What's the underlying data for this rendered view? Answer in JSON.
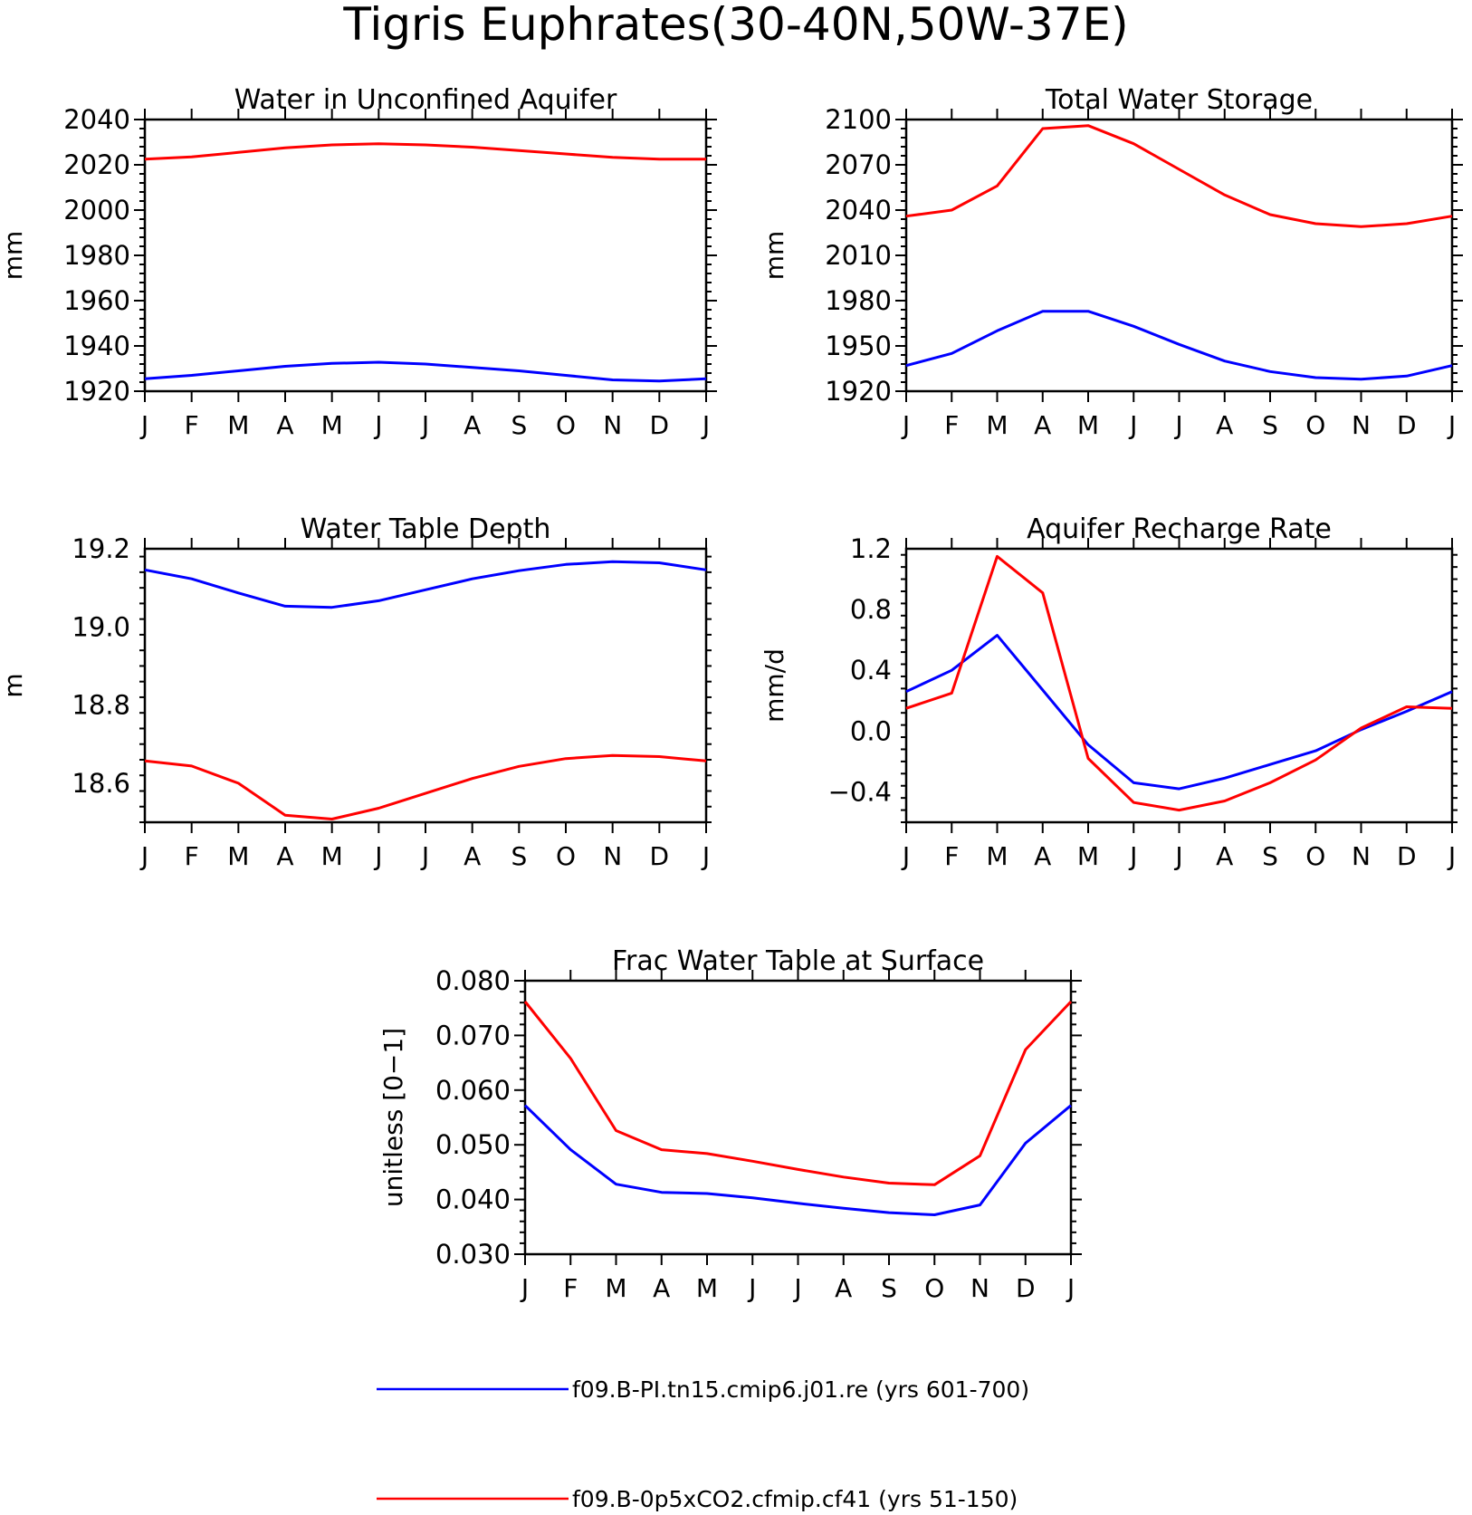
{
  "figure_title": "Tigris Euphrates(30-40N,50W-37E)",
  "colors": {
    "pi": "#0000ff",
    "co2": "#ff0000"
  },
  "months": [
    "J",
    "F",
    "M",
    "A",
    "M",
    "J",
    "J",
    "A",
    "S",
    "O",
    "N",
    "D",
    "J"
  ],
  "legend": [
    {
      "series": "pi",
      "label": "f09.B-PI.tn15.cmip6.j01.re (yrs 601-700)"
    },
    {
      "series": "co2",
      "label": "f09.B-0p5xCO2.cfmip.cf41 (yrs 51-150)"
    }
  ],
  "chart_data": [
    {
      "id": "aquifer",
      "type": "line",
      "title": "Water in Unconfined Aquifer",
      "ylabel": "mm",
      "ylim": [
        1920,
        2040
      ],
      "yticks": [
        "1920",
        "1940",
        "1960",
        "1980",
        "2000",
        "2020",
        "2040"
      ],
      "ytick_values": [
        1920,
        1940,
        1960,
        1980,
        2000,
        2020,
        2040
      ],
      "series": [
        {
          "key": "pi",
          "values": [
            1925.5,
            1927,
            1929,
            1931,
            1932.3,
            1932.8,
            1932,
            1930.5,
            1929,
            1927,
            1925,
            1924.5,
            1925.5
          ]
        },
        {
          "key": "co2",
          "values": [
            2022.5,
            2023.5,
            2025.5,
            2027.5,
            2028.8,
            2029.3,
            2028.8,
            2027.8,
            2026.3,
            2024.8,
            2023.3,
            2022.5,
            2022.5
          ]
        }
      ]
    },
    {
      "id": "tws",
      "type": "line",
      "title": "Total Water Storage",
      "ylabel": "mm",
      "ylim": [
        1920,
        2100
      ],
      "yticks": [
        "1920",
        "1950",
        "1980",
        "2010",
        "2040",
        "2070",
        "2100"
      ],
      "ytick_values": [
        1920,
        1950,
        1980,
        2010,
        2040,
        2070,
        2100
      ],
      "series": [
        {
          "key": "pi",
          "values": [
            1937,
            1945,
            1960,
            1973,
            1973,
            1963,
            1951,
            1940,
            1933,
            1929,
            1928,
            1930,
            1937
          ]
        },
        {
          "key": "co2",
          "values": [
            2036,
            2040,
            2056,
            2094,
            2096,
            2084,
            2067,
            2050,
            2037,
            2031,
            2029,
            2031,
            2036
          ]
        }
      ]
    },
    {
      "id": "wtd",
      "type": "line",
      "title": "Water Table Depth",
      "ylabel": "m",
      "ylim": [
        18.5,
        19.2
      ],
      "yticks": [
        "18.6",
        "18.8",
        "19.0",
        "19.2"
      ],
      "ytick_values": [
        18.6,
        18.8,
        19.0,
        19.2
      ],
      "series": [
        {
          "key": "pi",
          "values": [
            19.146,
            19.123,
            19.087,
            19.053,
            19.05,
            19.067,
            19.095,
            19.123,
            19.144,
            19.16,
            19.167,
            19.164,
            19.146
          ]
        },
        {
          "key": "co2",
          "values": [
            18.657,
            18.644,
            18.6,
            18.518,
            18.508,
            18.536,
            18.574,
            18.612,
            18.643,
            18.663,
            18.671,
            18.668,
            18.657
          ]
        }
      ]
    },
    {
      "id": "recharge",
      "type": "line",
      "title": "Aquifer Recharge Rate",
      "ylabel": "mm/d",
      "ylim": [
        -0.6,
        1.2
      ],
      "yticks": [
        "-0.4",
        "0.0",
        "0.4",
        "0.8",
        "1.2"
      ],
      "ytick_values": [
        -0.4,
        0.0,
        0.4,
        0.8,
        1.2
      ],
      "series": [
        {
          "key": "pi",
          "values": [
            0.26,
            0.4,
            0.63,
            0.27,
            -0.09,
            -0.34,
            -0.38,
            -0.31,
            -0.22,
            -0.13,
            0.01,
            0.13,
            0.26
          ]
        },
        {
          "key": "co2",
          "values": [
            0.15,
            0.25,
            1.15,
            0.91,
            -0.18,
            -0.47,
            -0.52,
            -0.46,
            -0.34,
            -0.19,
            0.02,
            0.16,
            0.15
          ]
        }
      ]
    },
    {
      "id": "frac",
      "type": "line",
      "title": "Frac Water Table at Surface",
      "ylabel": "unitless [0-1]",
      "ylim": [
        0.03,
        0.08
      ],
      "yticks": [
        "0.030",
        "0.040",
        "0.050",
        "0.060",
        "0.070",
        "0.080"
      ],
      "ytick_values": [
        0.03,
        0.04,
        0.05,
        0.06,
        0.07,
        0.08
      ],
      "series": [
        {
          "key": "pi",
          "values": [
            0.0572,
            0.0491,
            0.0428,
            0.0413,
            0.0411,
            0.0403,
            0.0393,
            0.0384,
            0.0376,
            0.0372,
            0.039,
            0.0503,
            0.0572
          ]
        },
        {
          "key": "co2",
          "values": [
            0.0762,
            0.0658,
            0.0526,
            0.0491,
            0.0484,
            0.047,
            0.0455,
            0.0441,
            0.043,
            0.0427,
            0.048,
            0.0674,
            0.0762
          ]
        }
      ]
    }
  ]
}
